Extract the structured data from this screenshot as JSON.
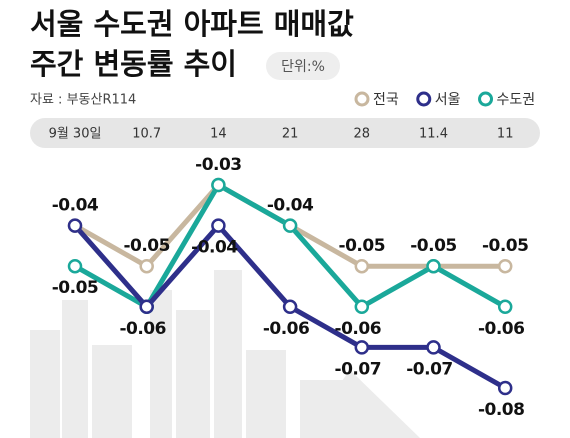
{
  "chart_data": {
    "type": "line",
    "title": "서울 수도권 아파트 매매값",
    "subtitle": "주간 변동률 추이",
    "unit": "단위:%",
    "source": "자료 : 부동산R114",
    "categories": [
      "9월 30일",
      "10.7",
      "14",
      "21",
      "28",
      "11.4",
      "11"
    ],
    "series": [
      {
        "name": "전국",
        "color": "#c8b79f",
        "values": [
          -0.04,
          -0.05,
          -0.03,
          -0.04,
          -0.05,
          -0.05,
          -0.05
        ]
      },
      {
        "name": "수도권",
        "color": "#1aa89a",
        "values": [
          -0.05,
          -0.06,
          -0.03,
          -0.04,
          -0.06,
          -0.05,
          -0.06
        ]
      },
      {
        "name": "서울",
        "color": "#2e2f8a",
        "values": [
          -0.04,
          -0.06,
          -0.04,
          -0.06,
          -0.07,
          -0.07,
          -0.08
        ]
      }
    ],
    "legend_order": [
      "전국",
      "서울",
      "수도권"
    ],
    "legend": "top-right"
  }
}
